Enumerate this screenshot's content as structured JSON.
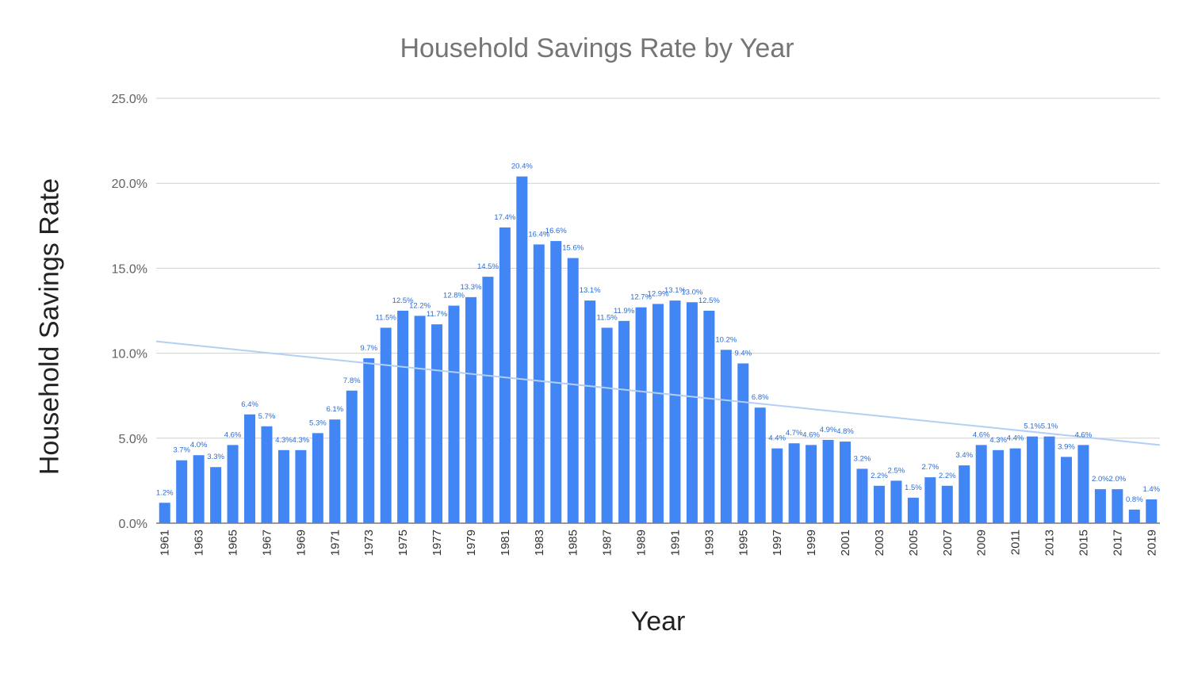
{
  "chart_data": {
    "type": "bar",
    "title": "Household Savings Rate by Year",
    "xlabel": "Year",
    "ylabel": "Household Savings Rate",
    "ylim": [
      0,
      25
    ],
    "yticks": [
      "0.0%",
      "5.0%",
      "10.0%",
      "15.0%",
      "20.0%",
      "25.0%"
    ],
    "grid": true,
    "bar_color": "#4285f4",
    "trendline_color": "#b3cff5",
    "label_color": "#2a6bd6",
    "trendline": {
      "start": 10.7,
      "end": 4.6
    },
    "categories": [
      1961,
      1962,
      1963,
      1964,
      1965,
      1966,
      1967,
      1968,
      1969,
      1970,
      1971,
      1972,
      1973,
      1974,
      1975,
      1976,
      1977,
      1978,
      1979,
      1980,
      1981,
      1982,
      1983,
      1984,
      1985,
      1986,
      1987,
      1988,
      1989,
      1990,
      1991,
      1992,
      1993,
      1994,
      1995,
      1996,
      1997,
      1998,
      1999,
      2000,
      2001,
      2002,
      2003,
      2004,
      2005,
      2006,
      2007,
      2008,
      2009,
      2010,
      2011,
      2012,
      2013,
      2014,
      2015,
      2016,
      2017,
      2018,
      2019
    ],
    "xtick_labels": [
      "1961",
      "1963",
      "1965",
      "1967",
      "1969",
      "1971",
      "1973",
      "1975",
      "1977",
      "1979",
      "1981",
      "1983",
      "1985",
      "1987",
      "1989",
      "1991",
      "1993",
      "1995",
      "1997",
      "1999",
      "2001",
      "2003",
      "2005",
      "2007",
      "2009",
      "2011",
      "2013",
      "2015",
      "2017",
      "2019"
    ],
    "values": [
      1.2,
      3.7,
      4.0,
      3.3,
      4.6,
      6.4,
      5.7,
      4.3,
      4.3,
      5.3,
      6.1,
      7.8,
      9.7,
      11.5,
      12.5,
      12.2,
      11.7,
      12.8,
      13.3,
      14.5,
      17.4,
      20.4,
      16.4,
      16.6,
      15.6,
      13.1,
      11.5,
      11.9,
      12.7,
      12.9,
      13.1,
      13.0,
      12.5,
      10.2,
      9.4,
      6.8,
      4.4,
      4.7,
      4.6,
      4.9,
      4.8,
      3.2,
      2.2,
      2.5,
      1.5,
      2.7,
      2.2,
      3.4,
      4.6,
      4.3,
      4.4,
      5.1,
      5.1,
      3.9,
      4.6,
      2.0,
      2.0,
      0.8,
      1.4
    ],
    "data_labels": [
      "1.2%",
      "3.7%",
      "4.0%",
      "3.3%",
      "4.6%",
      "6.4%",
      "5.7%",
      "4.3%",
      "4.3%",
      "5.3%",
      "6.1%",
      "7.8%",
      "9.7%",
      "11.5%",
      "12.5%",
      "12.2%",
      "11.7%",
      "12.8%",
      "13.3%",
      "14.5%",
      "17.4%",
      "20.4%",
      "16.4%",
      "16.6%",
      "15.6%",
      "13.1%",
      "11.5%",
      "11.9%",
      "12.7%",
      "12.9%",
      "13.1%",
      "13.0%",
      "12.5%",
      "10.2%",
      "9.4%",
      "6.8%",
      "4.4%",
      "4.7%",
      "4.6%",
      "4.9%",
      "4.8%",
      "3.2%",
      "2.2%",
      "2.5%",
      "1.5%",
      "2.7%",
      "2.2%",
      "3.4%",
      "4.6%",
      "4.3%",
      "4.4%",
      "5.1%",
      "5.1%",
      "3.9%",
      "4.6%",
      "2.0%",
      "2.0%",
      "0.8%",
      "1.4%"
    ]
  }
}
